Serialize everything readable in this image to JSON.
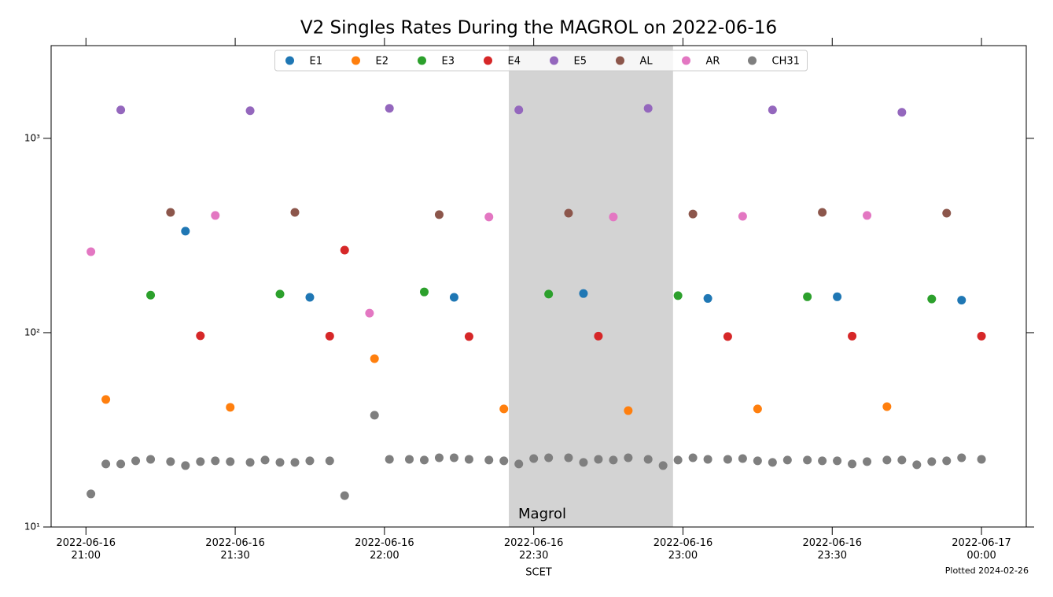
{
  "chart_data": {
    "type": "scatter",
    "title": "V2 Singles Rates During the MAGROL on 2022-06-16",
    "x_label": "SCET",
    "footnote": "Plotted 2024-02-26",
    "log_y": true,
    "legend": "upper center",
    "xlim": [
      "2022-06-16 20:53",
      "2022-06-17 00:09"
    ],
    "ylim": [
      10,
      3000
    ],
    "xticks": [
      {
        "value": "2022-06-16 21:00",
        "label": "2022-06-16\n21:00"
      },
      {
        "value": "2022-06-16 21:30",
        "label": "2022-06-16\n21:30"
      },
      {
        "value": "2022-06-16 22:00",
        "label": "2022-06-16\n22:00"
      },
      {
        "value": "2022-06-16 22:30",
        "label": "2022-06-16\n22:30"
      },
      {
        "value": "2022-06-16 23:00",
        "label": "2022-06-16\n23:00"
      },
      {
        "value": "2022-06-16 23:30",
        "label": "2022-06-16\n23:30"
      },
      {
        "value": "2022-06-17 00:00",
        "label": "2022-06-17\n00:00"
      }
    ],
    "yticks": [
      {
        "value": 10,
        "label": "10¹"
      },
      {
        "value": 100,
        "label": "10²"
      },
      {
        "value": 1000,
        "label": "10³"
      }
    ],
    "span": {
      "label": "Magrol",
      "x": [
        "2022-06-16 22:25",
        "2022-06-16 22:58"
      ],
      "color": "#d3d3d3"
    },
    "series": [
      {
        "name": "E1",
        "color": "#1f77b4",
        "x": [
          "2022-06-16 21:20",
          "2022-06-16 21:45",
          "2022-06-16 22:14",
          "2022-06-16 22:40",
          "2022-06-16 23:05",
          "2022-06-16 23:31",
          "2022-06-16 23:56"
        ],
        "values": [
          333,
          152,
          152,
          159,
          150,
          153,
          147
        ]
      },
      {
        "name": "E2",
        "color": "#ff7f0e",
        "x": [
          "2022-06-16 21:04",
          "2022-06-16 21:29",
          "2022-06-16 21:58",
          "2022-06-16 22:24",
          "2022-06-16 22:49",
          "2022-06-16 23:15",
          "2022-06-16 23:41"
        ],
        "values": [
          45.3,
          41.3,
          73.5,
          40.5,
          39.7,
          40.5,
          41.6
        ]
      },
      {
        "name": "E3",
        "color": "#2ca02c",
        "x": [
          "2022-06-16 21:13",
          "2022-06-16 21:39",
          "2022-06-16 22:08",
          "2022-06-16 22:33",
          "2022-06-16 22:59",
          "2022-06-16 23:25",
          "2022-06-16 23:50"
        ],
        "values": [
          156,
          158,
          162,
          158,
          155,
          153,
          149
        ]
      },
      {
        "name": "E4",
        "color": "#d62728",
        "x": [
          "2022-06-16 21:23",
          "2022-06-16 21:49",
          "2022-06-16 21:52",
          "2022-06-16 22:17",
          "2022-06-16 22:43",
          "2022-06-16 23:09",
          "2022-06-16 23:34",
          "2022-06-17 00:00"
        ],
        "values": [
          96.4,
          96,
          266,
          95.5,
          96,
          95.5,
          96,
          96
        ]
      },
      {
        "name": "E5",
        "color": "#9467bd",
        "x": [
          "2022-06-16 21:07",
          "2022-06-16 21:33",
          "2022-06-16 22:01",
          "2022-06-16 22:27",
          "2022-06-16 22:53",
          "2022-06-16 23:18",
          "2022-06-16 23:44"
        ],
        "values": [
          1400,
          1387,
          1427,
          1400,
          1427,
          1400,
          1361
        ]
      },
      {
        "name": "AL",
        "color": "#8c564b",
        "x": [
          "2022-06-16 21:17",
          "2022-06-16 21:42",
          "2022-06-16 22:11",
          "2022-06-16 22:37",
          "2022-06-16 23:02",
          "2022-06-16 23:28",
          "2022-06-16 23:53"
        ],
        "values": [
          416,
          416,
          405,
          412,
          408,
          416,
          412
        ]
      },
      {
        "name": "AR",
        "color": "#e377c2",
        "x": [
          "2022-06-16 21:01",
          "2022-06-16 21:26",
          "2022-06-16 21:57",
          "2022-06-16 22:21",
          "2022-06-16 22:46",
          "2022-06-16 23:12",
          "2022-06-16 23:37"
        ],
        "values": [
          261,
          401,
          126,
          394,
          394,
          397,
          401
        ]
      },
      {
        "name": "CH31",
        "color": "#7f7f7f",
        "x": [
          "2022-06-16 21:01",
          "2022-06-16 21:04",
          "2022-06-16 21:07",
          "2022-06-16 21:10",
          "2022-06-16 21:13",
          "2022-06-16 21:17",
          "2022-06-16 21:20",
          "2022-06-16 21:23",
          "2022-06-16 21:26",
          "2022-06-16 21:29",
          "2022-06-16 21:33",
          "2022-06-16 21:36",
          "2022-06-16 21:39",
          "2022-06-16 21:42",
          "2022-06-16 21:45",
          "2022-06-16 21:49",
          "2022-06-16 21:52",
          "2022-06-16 21:58",
          "2022-06-16 22:01",
          "2022-06-16 22:05",
          "2022-06-16 22:08",
          "2022-06-16 22:11",
          "2022-06-16 22:14",
          "2022-06-16 22:17",
          "2022-06-16 22:21",
          "2022-06-16 22:24",
          "2022-06-16 22:27",
          "2022-06-16 22:30",
          "2022-06-16 22:33",
          "2022-06-16 22:37",
          "2022-06-16 22:40",
          "2022-06-16 22:43",
          "2022-06-16 22:46",
          "2022-06-16 22:49",
          "2022-06-16 22:53",
          "2022-06-16 22:56",
          "2022-06-16 22:59",
          "2022-06-16 23:02",
          "2022-06-16 23:05",
          "2022-06-16 23:09",
          "2022-06-16 23:12",
          "2022-06-16 23:15",
          "2022-06-16 23:18",
          "2022-06-16 23:21",
          "2022-06-16 23:25",
          "2022-06-16 23:28",
          "2022-06-16 23:31",
          "2022-06-16 23:34",
          "2022-06-16 23:37",
          "2022-06-16 23:41",
          "2022-06-16 23:44",
          "2022-06-16 23:47",
          "2022-06-16 23:50",
          "2022-06-16 23:53",
          "2022-06-16 23:56",
          "2022-06-17 00:00"
        ],
        "values": [
          14.8,
          21.1,
          21.1,
          21.9,
          22.3,
          21.7,
          20.7,
          21.7,
          21.9,
          21.7,
          21.5,
          22.1,
          21.5,
          21.5,
          21.9,
          21.9,
          14.5,
          37.6,
          22.3,
          22.3,
          22.1,
          22.7,
          22.7,
          22.3,
          22.1,
          21.9,
          21.1,
          22.5,
          22.7,
          22.7,
          21.5,
          22.3,
          22.1,
          22.7,
          22.3,
          20.7,
          22.1,
          22.7,
          22.3,
          22.3,
          22.5,
          21.9,
          21.5,
          22.1,
          22.1,
          21.9,
          21.9,
          21.1,
          21.7,
          22.1,
          22.1,
          20.9,
          21.7,
          21.9,
          22.7,
          22.3
        ]
      }
    ]
  }
}
